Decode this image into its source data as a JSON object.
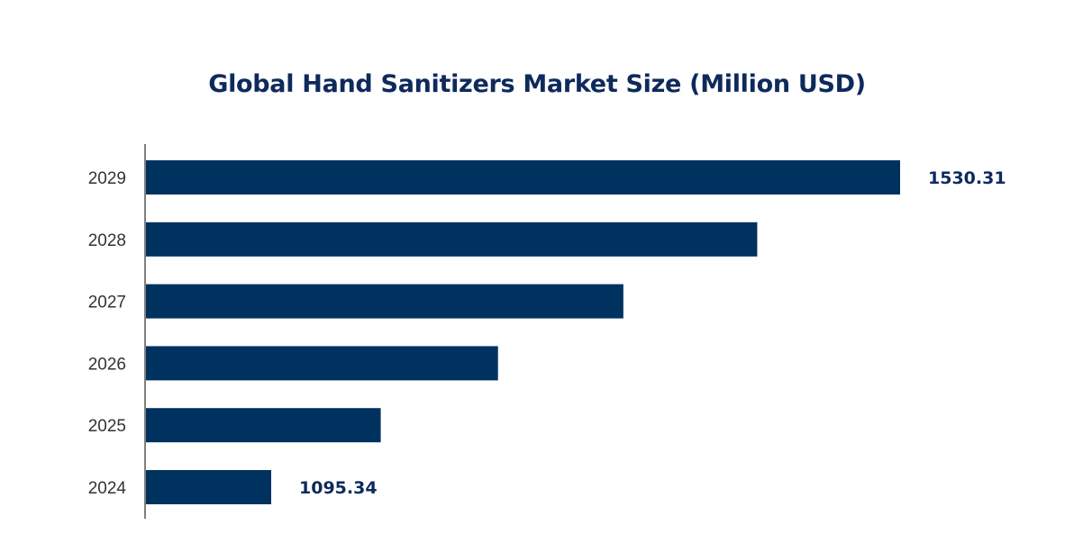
{
  "chart_data": {
    "type": "bar",
    "orientation": "horizontal",
    "title": "Global Hand Sanitizers Market Size (Million USD)",
    "xlabel": "",
    "ylabel": "",
    "categories": [
      "2024",
      "2025",
      "2026",
      "2027",
      "2028",
      "2029"
    ],
    "values": [
      1095.34,
      1171.1,
      1252.2,
      1338.9,
      1431.5,
      1530.31
    ],
    "data_labels": [
      "1095.34",
      null,
      null,
      null,
      null,
      "1530.31"
    ],
    "bar_color": "#003260",
    "label_color": "#0e2a5c",
    "grid": false,
    "legend": "none"
  }
}
